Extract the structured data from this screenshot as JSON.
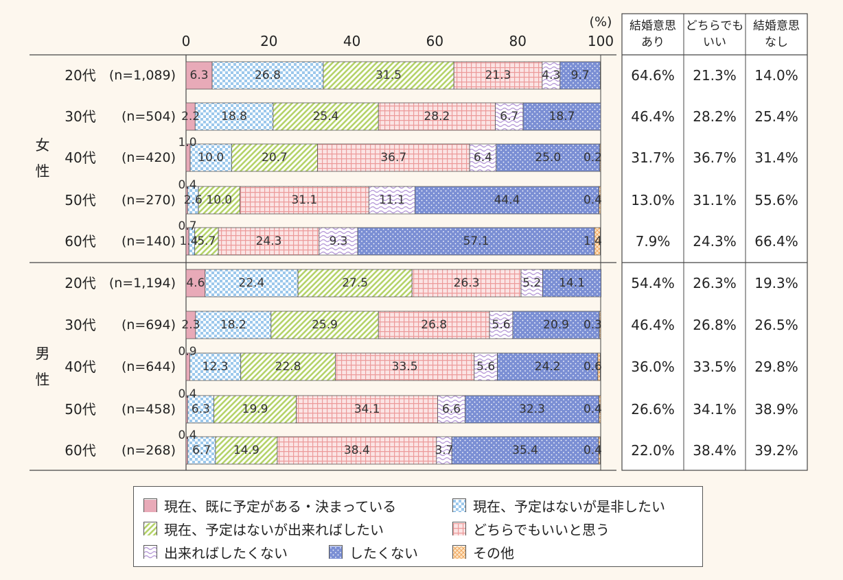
{
  "chart_data": {
    "type": "bar",
    "orientation": "horizontal",
    "stacked": true,
    "unit_label": "(%)",
    "x_ticks": [
      "0",
      "20",
      "40",
      "60",
      "80",
      "100"
    ],
    "xlim": [
      0,
      100
    ],
    "groups": [
      {
        "name_chars": [
          "女",
          "性"
        ],
        "rows": [
          0,
          1,
          2,
          3,
          4
        ]
      },
      {
        "name_chars": [
          "男",
          "性"
        ],
        "rows": [
          5,
          6,
          7,
          8,
          9
        ]
      }
    ],
    "rows": [
      {
        "age": "20代",
        "n": "(n=1,089)",
        "values": [
          6.3,
          26.8,
          31.5,
          21.3,
          4.3,
          9.7,
          0
        ],
        "labels": [
          "6.3",
          "26.8",
          "31.5",
          "21.3",
          "4.3",
          "9.7",
          ""
        ],
        "summary": [
          "64.6%",
          "21.3%",
          "14.0%"
        ]
      },
      {
        "age": "30代",
        "n": "(n=504)",
        "values": [
          2.2,
          18.8,
          25.4,
          28.2,
          6.7,
          18.7,
          0
        ],
        "labels": [
          "2.2",
          "18.8",
          "25.4",
          "28.2",
          "6.7",
          "18.7",
          ""
        ],
        "summary": [
          "46.4%",
          "28.2%",
          "25.4%"
        ]
      },
      {
        "age": "40代",
        "n": "(n=420)",
        "values": [
          1.0,
          10.0,
          20.7,
          36.7,
          6.4,
          25.0,
          0.2
        ],
        "labels": [
          "1.0",
          "10.0",
          "20.7",
          "36.7",
          "6.4",
          "25.0",
          "0.2"
        ],
        "summary": [
          "31.7%",
          "36.7%",
          "31.4%"
        ]
      },
      {
        "age": "50代",
        "n": "(n=270)",
        "values": [
          0.4,
          2.6,
          10.0,
          31.1,
          11.1,
          44.4,
          0.4
        ],
        "labels": [
          "0.4",
          "2.6",
          "10.0",
          "31.1",
          "11.1",
          "44.4",
          "0.4"
        ],
        "summary": [
          "13.0%",
          "31.1%",
          "55.6%"
        ]
      },
      {
        "age": "60代",
        "n": "(n=140)",
        "values": [
          0.7,
          1.4,
          5.7,
          24.3,
          9.3,
          57.1,
          1.4
        ],
        "labels": [
          "0.7",
          "1.4",
          "5.7",
          "24.3",
          "9.3",
          "57.1",
          "1.4"
        ],
        "summary": [
          "7.9%",
          "24.3%",
          "66.4%"
        ]
      },
      {
        "age": "20代",
        "n": "(n=1,194)",
        "values": [
          4.6,
          22.4,
          27.5,
          26.3,
          5.2,
          14.1,
          0
        ],
        "labels": [
          "4.6",
          "22.4",
          "27.5",
          "26.3",
          "5.2",
          "14.1",
          ""
        ],
        "summary": [
          "54.4%",
          "26.3%",
          "19.3%"
        ]
      },
      {
        "age": "30代",
        "n": "(n=694)",
        "values": [
          2.3,
          18.2,
          25.9,
          26.8,
          5.6,
          20.9,
          0.3
        ],
        "labels": [
          "2.3",
          "18.2",
          "25.9",
          "26.8",
          "5.6",
          "20.9",
          "0.3"
        ],
        "summary": [
          "46.4%",
          "26.8%",
          "26.5%"
        ]
      },
      {
        "age": "40代",
        "n": "(n=644)",
        "values": [
          0.9,
          12.3,
          22.8,
          33.5,
          5.6,
          24.2,
          0.6
        ],
        "labels": [
          "0.9",
          "12.3",
          "22.8",
          "33.5",
          "5.6",
          "24.2",
          "0.6"
        ],
        "summary": [
          "36.0%",
          "33.5%",
          "29.8%"
        ]
      },
      {
        "age": "50代",
        "n": "(n=458)",
        "values": [
          0.4,
          6.3,
          19.9,
          34.1,
          6.6,
          32.3,
          0.4
        ],
        "labels": [
          "0.4",
          "6.3",
          "19.9",
          "34.1",
          "6.6",
          "32.3",
          "0.4"
        ],
        "summary": [
          "26.6%",
          "34.1%",
          "38.9%"
        ]
      },
      {
        "age": "60代",
        "n": "(n=268)",
        "values": [
          0.4,
          6.7,
          14.9,
          38.4,
          3.7,
          35.4,
          0.4
        ],
        "labels": [
          "0.4",
          "6.7",
          "14.9",
          "38.4",
          "3.7",
          "35.4",
          "0.4"
        ],
        "summary": [
          "22.0%",
          "38.4%",
          "39.2%"
        ]
      }
    ],
    "summary_headers": [
      [
        "結婚意思",
        "あり"
      ],
      [
        "どちらでも",
        "いい"
      ],
      [
        "結婚意思",
        "なし"
      ]
    ],
    "series": [
      {
        "name": "現在、既に予定がある・決まっている",
        "pattern": "solid",
        "color": "#e8aab8"
      },
      {
        "name": "現在、予定はないが是非したい",
        "pattern": "checker",
        "color": "#9cc8ec"
      },
      {
        "name": "現在、予定はないが出来ればしたい",
        "pattern": "diagonal",
        "color": "#b5d36a"
      },
      {
        "name": "どちらでもいいと思う",
        "pattern": "grid",
        "color": "#ec9a9a"
      },
      {
        "name": "出来ればしたくない",
        "pattern": "wave",
        "color": "#b79ad8"
      },
      {
        "name": "したくない",
        "pattern": "dots",
        "color": "#7b8fd4"
      },
      {
        "name": "その他",
        "pattern": "cross",
        "color": "#f0a860"
      }
    ]
  }
}
